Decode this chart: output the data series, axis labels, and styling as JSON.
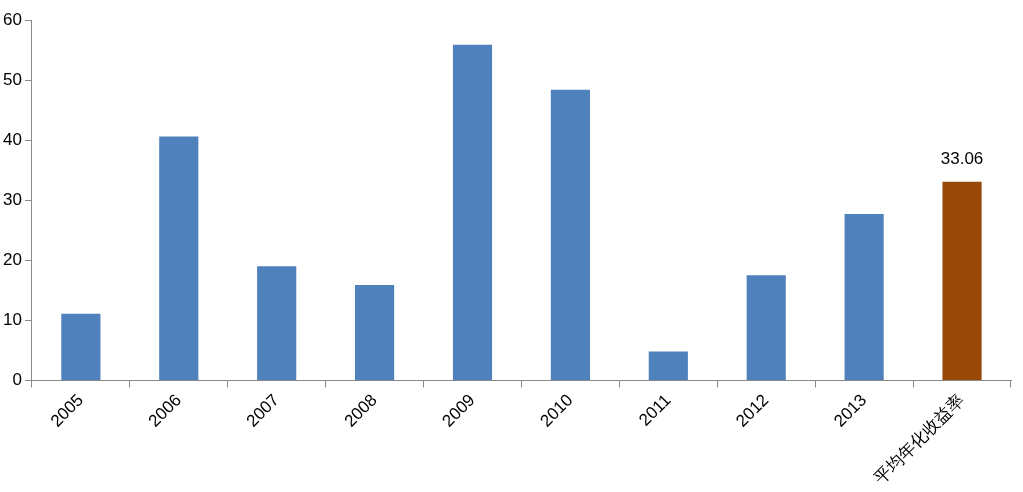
{
  "chart_data": {
    "type": "bar",
    "categories": [
      "2005",
      "2006",
      "2007",
      "2008",
      "2009",
      "2010",
      "2011",
      "2012",
      "2013",
      "平均年化收益率"
    ],
    "values": [
      11.1,
      40.6,
      19.0,
      15.9,
      55.9,
      48.4,
      4.8,
      17.5,
      27.7,
      33.06
    ],
    "colors": [
      "#4f81bd",
      "#4f81bd",
      "#4f81bd",
      "#4f81bd",
      "#4f81bd",
      "#4f81bd",
      "#4f81bd",
      "#4f81bd",
      "#4f81bd",
      "#984807"
    ],
    "value_labels": [
      null,
      null,
      null,
      null,
      null,
      null,
      null,
      null,
      null,
      "33.06"
    ],
    "ylim": [
      0,
      60
    ],
    "yticks": [
      0,
      10,
      20,
      30,
      40,
      50,
      60
    ],
    "grid": false,
    "legend": false
  }
}
